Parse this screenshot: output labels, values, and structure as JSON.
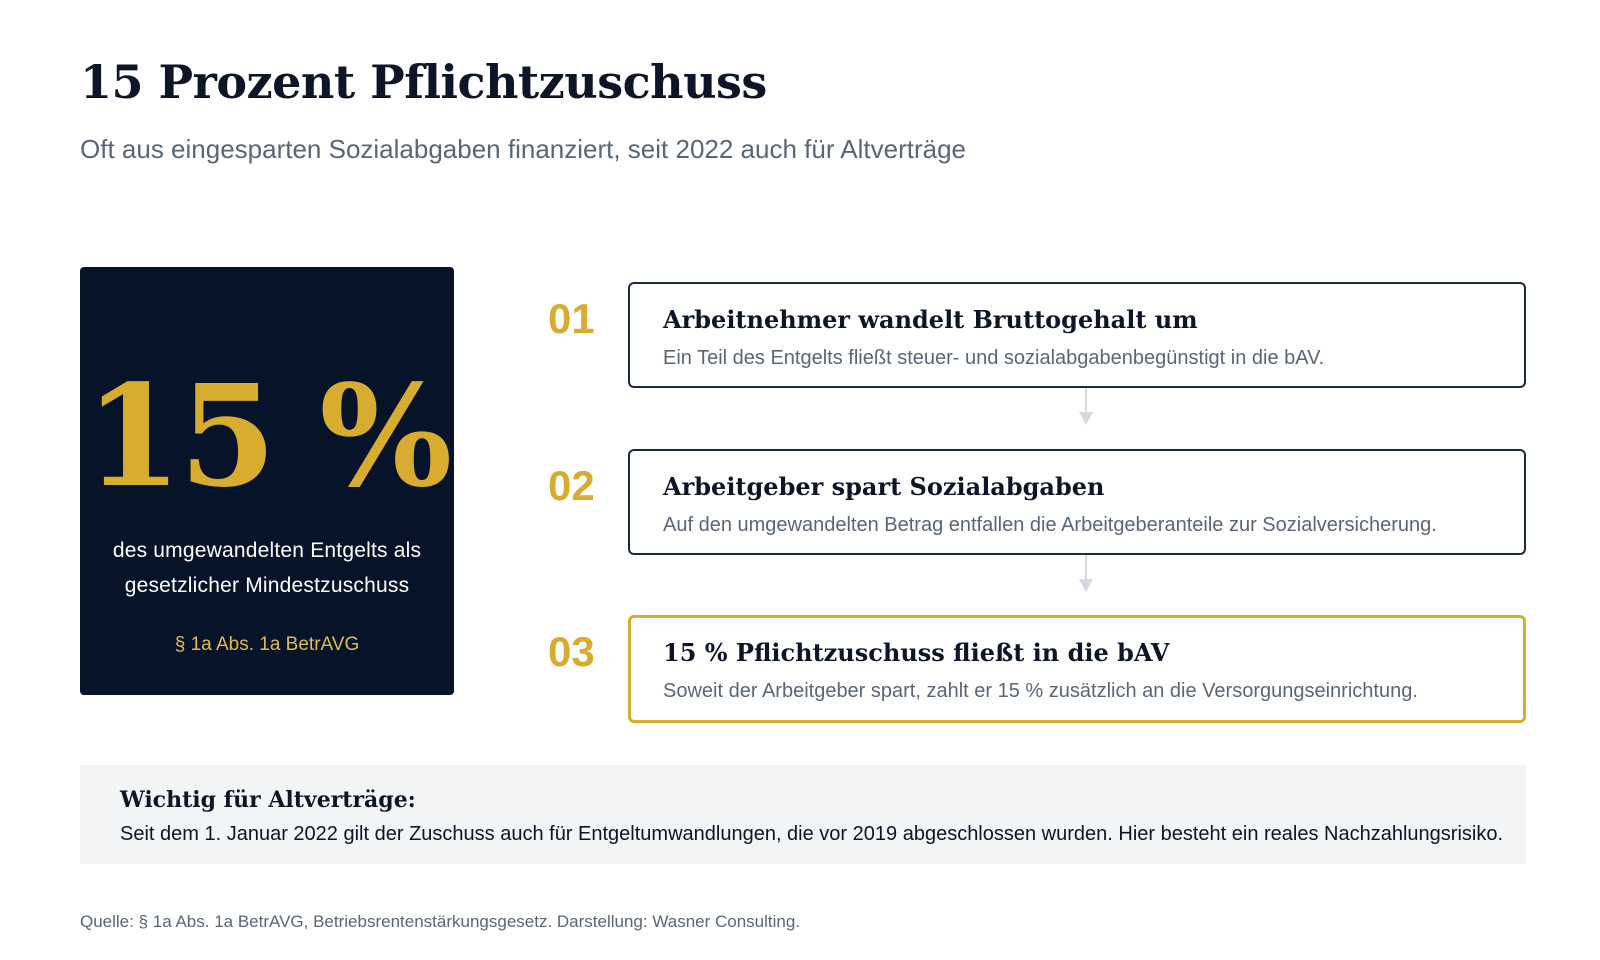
{
  "title": "15 Prozent Pflichtzuschuss",
  "subtitle": "Oft aus eingesparten Sozialabgaben finanziert, seit 2022 auch für Altverträge",
  "stat": {
    "value": "15 %",
    "description_line1": "des umgewandelten Entgelts als",
    "description_line2": "gesetzlicher Mindestzuschuss",
    "law": "§ 1a Abs. 1a BetrAVG"
  },
  "steps": [
    {
      "number": "01",
      "title": "Arbeitnehmer wandelt Bruttogehalt um",
      "text": "Ein Teil des Entgelts fließt steuer- und sozialabgabenbegünstigt in die bAV."
    },
    {
      "number": "02",
      "title": "Arbeitgeber spart Sozialabgaben",
      "text": "Auf den umgewandelten Betrag entfallen die Arbeitgeberanteile zur Sozialversicherung."
    },
    {
      "number": "03",
      "title": "15 % Pflichtzuschuss fließt in die bAV",
      "text": "Soweit der Arbeitgeber spart, zahlt er 15 % zusätzlich an die Versorgungseinrichtung."
    }
  ],
  "note": {
    "title": "Wichtig für Altverträge:",
    "text": "Seit dem 1. Januar 2022 gilt der Zuschuss auch für Entgeltumwandlungen, die vor 2019 abgeschlossen wurden. Hier besteht ein reales Nachzahlungsrisiko."
  },
  "source": "Quelle: § 1a Abs. 1a BetrAVG, Betriebsrentenstärkungsgesetz. Darstellung: Wasner Consulting.",
  "colors": {
    "navy": "#071329",
    "gold": "#d7ac2f",
    "text_dark": "#0d1526",
    "text_gray": "#5b6675",
    "note_bg": "#f3f4f6",
    "connector": "#d4d9e0"
  }
}
